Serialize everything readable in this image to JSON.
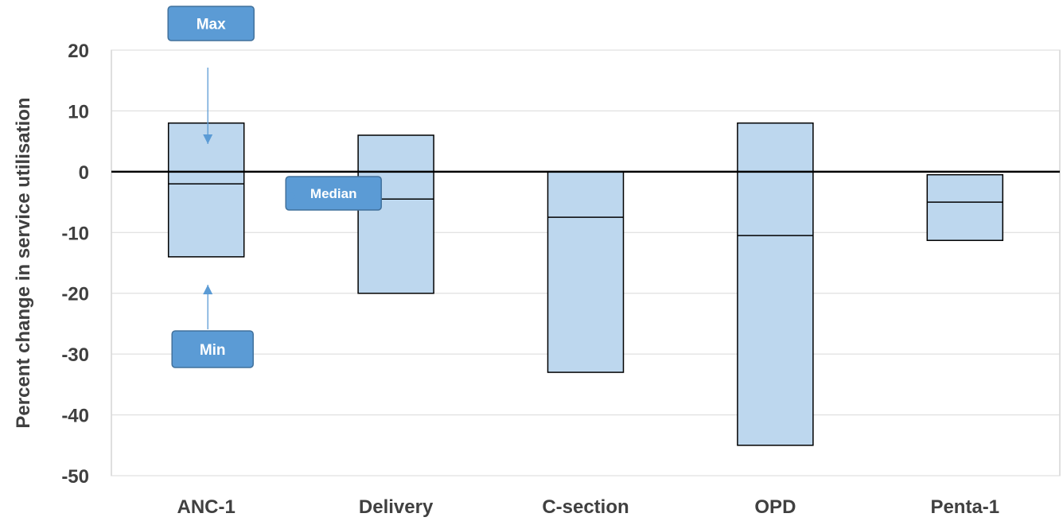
{
  "chart_data": {
    "type": "bar",
    "subtype": "floating-range-with-median",
    "categories": [
      "ANC-1",
      "Delivery",
      "C-section",
      "OPD",
      "Penta-1"
    ],
    "series": [
      {
        "name": "Max",
        "values": [
          8,
          6,
          0,
          8,
          -0.5
        ]
      },
      {
        "name": "Median",
        "values": [
          -2,
          -4.5,
          -7.5,
          -10.5,
          -5
        ]
      },
      {
        "name": "Min",
        "values": [
          -14,
          -20,
          -33,
          -45,
          -11.3
        ]
      }
    ],
    "title": "",
    "xlabel": "",
    "ylabel": "Percent change in service utilisation",
    "ylim": [
      -50,
      20
    ],
    "yticks": [
      20,
      10,
      0,
      -10,
      -20,
      -30,
      -40,
      -50
    ],
    "grid": true,
    "annotations": [
      {
        "label": "Max",
        "points_to": "Max",
        "category": "ANC-1"
      },
      {
        "label": "Median",
        "points_to": "Median",
        "category": "ANC-1"
      },
      {
        "label": "Min",
        "points_to": "Min",
        "category": "ANC-1"
      }
    ],
    "colors": {
      "bar_fill": "#BDD7EE",
      "bar_stroke": "#000000",
      "gridline": "#D9D9D9",
      "zero_line": "#000000",
      "callout_fill": "#5B9BD5",
      "callout_stroke": "#41719C",
      "callout_text": "#FFFFFF",
      "arrow": "#5B9BD5",
      "axis_text": "#404040"
    }
  }
}
